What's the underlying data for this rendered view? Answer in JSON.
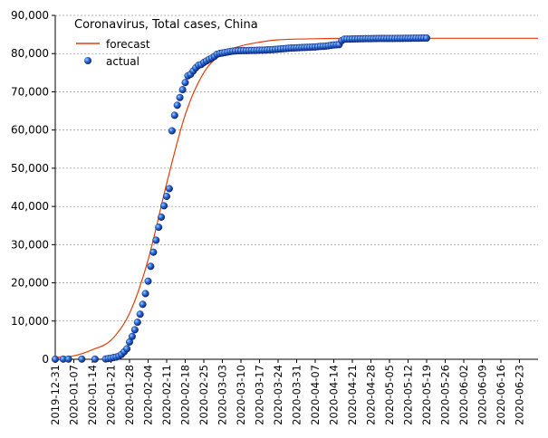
{
  "chart_data": {
    "type": "line",
    "title": "Coronavirus, Total cases, China",
    "xlabel": "",
    "ylabel": "",
    "ylim": [
      0,
      90000
    ],
    "y_ticks": [
      0,
      10000,
      20000,
      30000,
      40000,
      50000,
      60000,
      70000,
      80000,
      90000
    ],
    "y_tick_labels": [
      "0",
      "10,000",
      "20,000",
      "30,000",
      "40,000",
      "50,000",
      "60,000",
      "70,000",
      "80,000",
      "90,000"
    ],
    "x_range": [
      "2019-12-31",
      "2020-06-30"
    ],
    "x_tick_labels": [
      "2019-12-31",
      "2020-01-07",
      "2020-01-14",
      "2020-01-21",
      "2020-01-28",
      "2020-02-04",
      "2020-02-11",
      "2020-02-18",
      "2020-02-25",
      "2020-03-03",
      "2020-03-10",
      "2020-03-17",
      "2020-03-24",
      "2020-03-31",
      "2020-04-07",
      "2020-04-14",
      "2020-04-21",
      "2020-04-28",
      "2020-05-05",
      "2020-05-12",
      "2020-05-19",
      "2020-05-26",
      "2020-06-02",
      "2020-06-09",
      "2020-06-16",
      "2020-06-23"
    ],
    "grid": "horizontal dashed",
    "legend_position": "top-left",
    "series": [
      {
        "name": "forecast",
        "style": "line",
        "color": "#e0400a",
        "points": [
          [
            "2019-12-31",
            500
          ],
          [
            "2020-01-07",
            900
          ],
          [
            "2020-01-14",
            2500
          ],
          [
            "2020-01-21",
            5000
          ],
          [
            "2020-01-28",
            12000
          ],
          [
            "2020-02-04",
            26000
          ],
          [
            "2020-02-11",
            46000
          ],
          [
            "2020-02-18",
            64000
          ],
          [
            "2020-02-25",
            75000
          ],
          [
            "2020-03-03",
            80000
          ],
          [
            "2020-03-10",
            82000
          ],
          [
            "2020-03-17",
            83000
          ],
          [
            "2020-03-24",
            83600
          ],
          [
            "2020-03-31",
            83800
          ],
          [
            "2020-04-07",
            83900
          ],
          [
            "2020-04-14",
            83950
          ],
          [
            "2020-04-21",
            84000
          ],
          [
            "2020-04-28",
            84000
          ],
          [
            "2020-05-05",
            84000
          ],
          [
            "2020-05-12",
            84000
          ],
          [
            "2020-05-19",
            84000
          ],
          [
            "2020-05-26",
            84000
          ],
          [
            "2020-06-02",
            84000
          ],
          [
            "2020-06-09",
            84000
          ],
          [
            "2020-06-16",
            84000
          ],
          [
            "2020-06-23",
            84000
          ],
          [
            "2020-06-30",
            84000
          ]
        ]
      },
      {
        "name": "actual",
        "style": "markers",
        "color": "#1a3fb0",
        "points": [
          [
            "2019-12-31",
            27
          ],
          [
            "2020-01-03",
            44
          ],
          [
            "2020-01-05",
            59
          ],
          [
            "2020-01-10",
            41
          ],
          [
            "2020-01-15",
            41
          ],
          [
            "2020-01-19",
            62
          ],
          [
            "2020-01-20",
            198
          ],
          [
            "2020-01-21",
            291
          ],
          [
            "2020-01-22",
            440
          ],
          [
            "2020-01-23",
            571
          ],
          [
            "2020-01-24",
            830
          ],
          [
            "2020-01-25",
            1287
          ],
          [
            "2020-01-26",
            1975
          ],
          [
            "2020-01-27",
            2744
          ],
          [
            "2020-01-28",
            4515
          ],
          [
            "2020-01-29",
            5974
          ],
          [
            "2020-01-30",
            7711
          ],
          [
            "2020-01-31",
            9692
          ],
          [
            "2020-02-01",
            11791
          ],
          [
            "2020-02-02",
            14380
          ],
          [
            "2020-02-03",
            17205
          ],
          [
            "2020-02-04",
            20438
          ],
          [
            "2020-02-05",
            24324
          ],
          [
            "2020-02-06",
            28018
          ],
          [
            "2020-02-07",
            31161
          ],
          [
            "2020-02-08",
            34546
          ],
          [
            "2020-02-09",
            37198
          ],
          [
            "2020-02-10",
            40171
          ],
          [
            "2020-02-11",
            42638
          ],
          [
            "2020-02-12",
            44653
          ],
          [
            "2020-02-13",
            59804
          ],
          [
            "2020-02-14",
            63851
          ],
          [
            "2020-02-15",
            66492
          ],
          [
            "2020-02-16",
            68500
          ],
          [
            "2020-02-17",
            70548
          ],
          [
            "2020-02-18",
            72436
          ],
          [
            "2020-02-19",
            74185
          ],
          [
            "2020-02-20",
            74576
          ],
          [
            "2020-02-21",
            75465
          ],
          [
            "2020-02-22",
            76288
          ],
          [
            "2020-02-23",
            76936
          ],
          [
            "2020-02-24",
            77150
          ],
          [
            "2020-02-25",
            77658
          ],
          [
            "2020-02-26",
            78064
          ],
          [
            "2020-02-27",
            78497
          ],
          [
            "2020-02-28",
            78824
          ],
          [
            "2020-02-29",
            79251
          ],
          [
            "2020-03-01",
            79824
          ],
          [
            "2020-03-02",
            80026
          ],
          [
            "2020-03-03",
            80151
          ],
          [
            "2020-03-04",
            80270
          ],
          [
            "2020-03-05",
            80409
          ],
          [
            "2020-03-06",
            80552
          ],
          [
            "2020-03-07",
            80651
          ],
          [
            "2020-03-08",
            80695
          ],
          [
            "2020-03-09",
            80735
          ],
          [
            "2020-03-10",
            80754
          ],
          [
            "2020-03-11",
            80778
          ],
          [
            "2020-03-12",
            80793
          ],
          [
            "2020-03-13",
            80813
          ],
          [
            "2020-03-14",
            80824
          ],
          [
            "2020-03-15",
            80844
          ],
          [
            "2020-03-16",
            80860
          ],
          [
            "2020-03-17",
            80881
          ],
          [
            "2020-03-18",
            80894
          ],
          [
            "2020-03-19",
            80928
          ],
          [
            "2020-03-20",
            80967
          ],
          [
            "2020-03-21",
            81008
          ],
          [
            "2020-03-22",
            81054
          ],
          [
            "2020-03-23",
            81093
          ],
          [
            "2020-03-24",
            81171
          ],
          [
            "2020-03-25",
            81218
          ],
          [
            "2020-03-26",
            81285
          ],
          [
            "2020-03-27",
            81340
          ],
          [
            "2020-03-28",
            81394
          ],
          [
            "2020-03-29",
            81439
          ],
          [
            "2020-03-30",
            81470
          ],
          [
            "2020-03-31",
            81518
          ],
          [
            "2020-04-01",
            81554
          ],
          [
            "2020-04-02",
            81589
          ],
          [
            "2020-04-03",
            81620
          ],
          [
            "2020-04-04",
            81639
          ],
          [
            "2020-04-05",
            81669
          ],
          [
            "2020-04-06",
            81708
          ],
          [
            "2020-04-07",
            81740
          ],
          [
            "2020-04-08",
            81802
          ],
          [
            "2020-04-09",
            81865
          ],
          [
            "2020-04-10",
            81907
          ],
          [
            "2020-04-11",
            81953
          ],
          [
            "2020-04-12",
            82052
          ],
          [
            "2020-04-13",
            82160
          ],
          [
            "2020-04-14",
            82249
          ],
          [
            "2020-04-15",
            82295
          ],
          [
            "2020-04-16",
            82341
          ],
          [
            "2020-04-17",
            83403
          ],
          [
            "2020-04-18",
            83760
          ],
          [
            "2020-04-19",
            83787
          ],
          [
            "2020-04-20",
            83805
          ],
          [
            "2020-04-21",
            83817
          ],
          [
            "2020-04-22",
            83853
          ],
          [
            "2020-04-23",
            83868
          ],
          [
            "2020-04-24",
            83884
          ],
          [
            "2020-04-25",
            83899
          ],
          [
            "2020-04-26",
            83909
          ],
          [
            "2020-04-27",
            83912
          ],
          [
            "2020-04-28",
            83918
          ],
          [
            "2020-04-29",
            83940
          ],
          [
            "2020-04-30",
            83944
          ],
          [
            "2020-05-01",
            83956
          ],
          [
            "2020-05-02",
            83959
          ],
          [
            "2020-05-03",
            83959
          ],
          [
            "2020-05-04",
            83964
          ],
          [
            "2020-05-05",
            83966
          ],
          [
            "2020-05-06",
            83968
          ],
          [
            "2020-05-07",
            83970
          ],
          [
            "2020-05-08",
            83975
          ],
          [
            "2020-05-09",
            83976
          ],
          [
            "2020-05-10",
            83990
          ],
          [
            "2020-05-11",
            84010
          ],
          [
            "2020-05-12",
            84011
          ],
          [
            "2020-05-13",
            84018
          ],
          [
            "2020-05-14",
            84024
          ],
          [
            "2020-05-15",
            84029
          ],
          [
            "2020-05-16",
            84038
          ],
          [
            "2020-05-17",
            84044
          ],
          [
            "2020-05-18",
            84054
          ],
          [
            "2020-05-19",
            84063
          ]
        ]
      }
    ]
  }
}
